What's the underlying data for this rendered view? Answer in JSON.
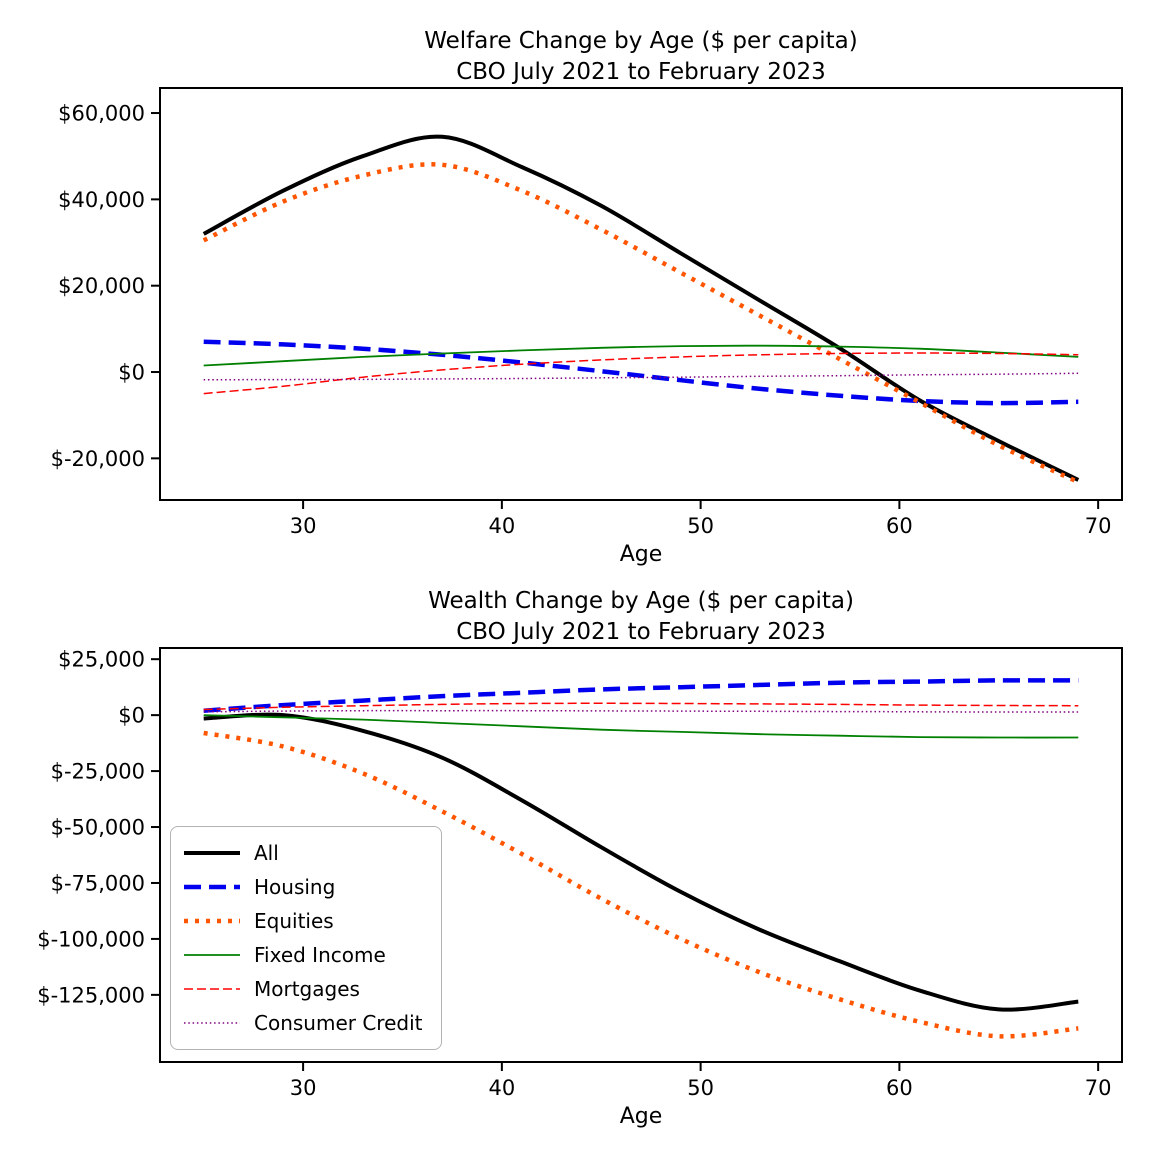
{
  "meta": {
    "background": "#ffffff",
    "text_color": "#000000"
  },
  "styles": {
    "All": {
      "color": "#000000",
      "width": 4,
      "dash": ""
    },
    "Housing": {
      "color": "#0000ee",
      "width": 4.5,
      "dash": "17 8"
    },
    "Equities": {
      "color": "#ff5500",
      "width": 4.5,
      "dash": "4 7"
    },
    "Fixed Income": {
      "color": "#008000",
      "width": 1.8,
      "dash": ""
    },
    "Mortgages": {
      "color": "#ff0000",
      "width": 1.5,
      "dash": "9 4"
    },
    "Consumer Credit": {
      "color": "#800080",
      "width": 1.5,
      "dash": "1.5 2.8"
    }
  },
  "legend": {
    "position": "lower left",
    "items": [
      "All",
      "Housing",
      "Equities",
      "Fixed Income",
      "Mortgages",
      "Consumer Credit"
    ]
  },
  "chart_data": [
    {
      "type": "line",
      "title": "Welfare Change by Age ($ per capita)",
      "subtitle": "CBO July 2021 to February 2023",
      "xlabel": "Age",
      "ylabel": "",
      "grid": false,
      "xlim": [
        22.8,
        71.2
      ],
      "ylim": [
        -29650,
        65800
      ],
      "x_ticks": [
        {
          "value": 30,
          "label": "30"
        },
        {
          "value": 40,
          "label": "40"
        },
        {
          "value": 50,
          "label": "50"
        },
        {
          "value": 60,
          "label": "60"
        },
        {
          "value": 70,
          "label": "70"
        }
      ],
      "y_ticks": [
        {
          "value": 60000,
          "label": "$60,000"
        },
        {
          "value": 40000,
          "label": "$40,000"
        },
        {
          "value": 20000,
          "label": "$20,000"
        },
        {
          "value": 0,
          "label": "$0"
        },
        {
          "value": -20000,
          "label": "$-20,000"
        }
      ],
      "x": [
        25,
        29,
        33,
        37,
        41,
        45,
        49,
        53,
        57,
        61,
        65,
        69
      ],
      "series": [
        {
          "name": "All",
          "values": [
            32000,
            42000,
            50000,
            54500,
            47500,
            38500,
            27500,
            16500,
            5500,
            -6500,
            -16000,
            -25000
          ]
        },
        {
          "name": "Housing",
          "values": [
            7000,
            6400,
            5400,
            4000,
            2200,
            200,
            -1900,
            -3900,
            -5500,
            -6700,
            -7200,
            -6900
          ]
        },
        {
          "name": "Equities",
          "values": [
            30500,
            39500,
            45500,
            48000,
            42000,
            33000,
            23000,
            13000,
            3000,
            -7000,
            -17000,
            -25500
          ]
        },
        {
          "name": "Fixed Income",
          "values": [
            1500,
            2500,
            3500,
            4300,
            5000,
            5600,
            6000,
            6100,
            5900,
            5400,
            4500,
            3500
          ]
        },
        {
          "name": "Mortgages",
          "values": [
            -5000,
            -3300,
            -1200,
            500,
            1800,
            2800,
            3500,
            4000,
            4300,
            4400,
            4300,
            4000
          ]
        },
        {
          "name": "Consumer Credit",
          "values": [
            -1800,
            -1750,
            -1700,
            -1600,
            -1500,
            -1350,
            -1200,
            -1000,
            -850,
            -650,
            -500,
            -300
          ]
        }
      ]
    },
    {
      "type": "line",
      "title": "Wealth Change by Age ($ per capita)",
      "subtitle": "CBO July 2021 to February 2023",
      "xlabel": "Age",
      "ylabel": "",
      "grid": false,
      "xlim": [
        22.8,
        71.2
      ],
      "ylim": [
        -155000,
        30000
      ],
      "x_ticks": [
        {
          "value": 30,
          "label": "30"
        },
        {
          "value": 40,
          "label": "40"
        },
        {
          "value": 50,
          "label": "50"
        },
        {
          "value": 60,
          "label": "60"
        },
        {
          "value": 70,
          "label": "70"
        }
      ],
      "y_ticks": [
        {
          "value": 25000,
          "label": "$25,000"
        },
        {
          "value": 0,
          "label": "$0"
        },
        {
          "value": -25000,
          "label": "$-25,000"
        },
        {
          "value": -50000,
          "label": "$-50,000"
        },
        {
          "value": -75000,
          "label": "$-75,000"
        },
        {
          "value": -100000,
          "label": "$-100,000"
        },
        {
          "value": -125000,
          "label": "$-125,000"
        }
      ],
      "x": [
        25,
        29,
        33,
        37,
        41,
        45,
        49,
        53,
        57,
        61,
        65,
        69
      ],
      "series": [
        {
          "name": "All",
          "values": [
            -1500,
            0,
            -7000,
            -19000,
            -38000,
            -59000,
            -79000,
            -96000,
            -110000,
            -123000,
            -131500,
            -128000
          ]
        },
        {
          "name": "Housing",
          "values": [
            2000,
            4500,
            6500,
            8500,
            10000,
            11500,
            12500,
            13500,
            14500,
            15000,
            15500,
            15500
          ]
        },
        {
          "name": "Equities",
          "values": [
            -8000,
            -14000,
            -26000,
            -43000,
            -62000,
            -82000,
            -100000,
            -115000,
            -127000,
            -137000,
            -143500,
            -140000
          ]
        },
        {
          "name": "Fixed Income",
          "values": [
            0,
            -1000,
            -2000,
            -3500,
            -5000,
            -6500,
            -7500,
            -8500,
            -9200,
            -9800,
            -10000,
            -10000
          ]
        },
        {
          "name": "Mortgages",
          "values": [
            2500,
            3500,
            4200,
            4800,
            5200,
            5300,
            5200,
            5000,
            4800,
            4500,
            4300,
            4200
          ]
        },
        {
          "name": "Consumer Credit",
          "values": [
            1500,
            1800,
            2000,
            2000,
            2000,
            1900,
            1800,
            1700,
            1600,
            1500,
            1400,
            1400
          ]
        }
      ]
    }
  ]
}
